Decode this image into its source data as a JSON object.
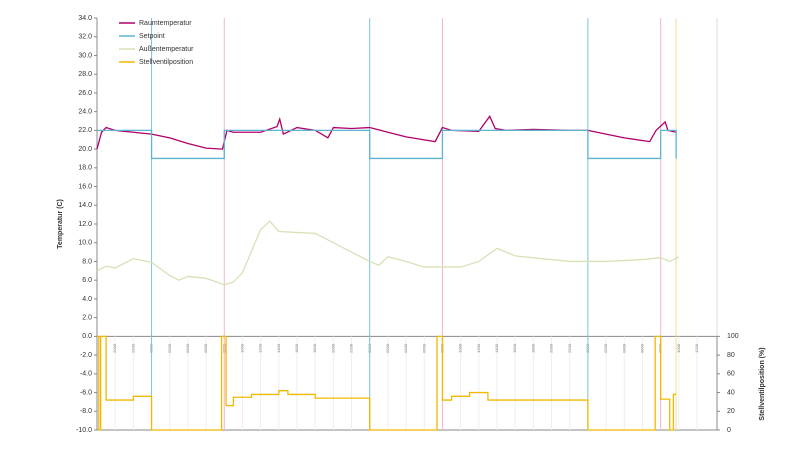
{
  "chart_data": {
    "type": "line",
    "ylabel": "Temperatur (C)",
    "y2label": "Stellventilposition (%)",
    "xlim": [
      18,
      86.2
    ],
    "ylim": [
      -10,
      34
    ],
    "y2lim": [
      0,
      100
    ],
    "yticks": [
      {
        "value": 34,
        "label": "34.0"
      },
      {
        "value": 32,
        "label": "32.0"
      },
      {
        "value": 30,
        "label": "30.0"
      },
      {
        "value": 28,
        "label": "28.0"
      },
      {
        "value": 26,
        "label": "26.0"
      },
      {
        "value": 24,
        "label": "24.0"
      },
      {
        "value": 22,
        "label": "22.0"
      },
      {
        "value": 20,
        "label": "20.0"
      },
      {
        "value": 18,
        "label": "18.0"
      },
      {
        "value": 16,
        "label": "16.0"
      },
      {
        "value": 14,
        "label": "14.0"
      },
      {
        "value": 12,
        "label": "12.0"
      },
      {
        "value": 10,
        "label": "10.0"
      },
      {
        "value": 8,
        "label": "8.0"
      },
      {
        "value": 6,
        "label": "6.0"
      },
      {
        "value": 4,
        "label": "4.0"
      },
      {
        "value": 2,
        "label": "2.0"
      },
      {
        "value": 0,
        "label": "0.0"
      },
      {
        "value": -2,
        "label": "-2.0"
      },
      {
        "value": -4,
        "label": "-4.0"
      },
      {
        "value": -6,
        "label": "-6.0"
      },
      {
        "value": -8,
        "label": "-8.0"
      },
      {
        "value": -10,
        "label": "-10.0"
      }
    ],
    "y2ticks": [
      0,
      20,
      40,
      60,
      80,
      100
    ],
    "xticks": [
      {
        "value": 20,
        "label": "2000"
      },
      {
        "value": 22,
        "label": "2200"
      },
      {
        "value": 24,
        "label": "0000"
      },
      {
        "value": 26,
        "label": "0200"
      },
      {
        "value": 28,
        "label": "0400"
      },
      {
        "value": 30,
        "label": "0600"
      },
      {
        "value": 32,
        "label": "0800"
      },
      {
        "value": 34,
        "label": "1000"
      },
      {
        "value": 36,
        "label": "1200"
      },
      {
        "value": 38,
        "label": "1400"
      },
      {
        "value": 40,
        "label": "1600"
      },
      {
        "value": 42,
        "label": "1800"
      },
      {
        "value": 44,
        "label": "2000"
      },
      {
        "value": 46,
        "label": "2200"
      },
      {
        "value": 48,
        "label": "0000"
      },
      {
        "value": 50,
        "label": "0200"
      },
      {
        "value": 52,
        "label": "0400"
      },
      {
        "value": 54,
        "label": "0600"
      },
      {
        "value": 56,
        "label": "0800"
      },
      {
        "value": 58,
        "label": "1000"
      },
      {
        "value": 60,
        "label": "1200"
      },
      {
        "value": 62,
        "label": "1400"
      },
      {
        "value": 64,
        "label": "1600"
      },
      {
        "value": 66,
        "label": "1800"
      },
      {
        "value": 68,
        "label": "2000"
      },
      {
        "value": 70,
        "label": "2200"
      },
      {
        "value": 72,
        "label": "0000"
      },
      {
        "value": 74,
        "label": "0200"
      },
      {
        "value": 76,
        "label": "0400"
      },
      {
        "value": 78,
        "label": "0600"
      },
      {
        "value": 80,
        "label": "0800"
      },
      {
        "value": 82,
        "label": "1000"
      },
      {
        "value": 84,
        "label": "1200"
      }
    ],
    "vlines": [
      {
        "x": 24,
        "color": "#7cc3dc"
      },
      {
        "x": 48,
        "color": "#7cc3dc"
      },
      {
        "x": 72,
        "color": "#7cc3dc"
      },
      {
        "x": 32,
        "color": "#f4b6c8"
      },
      {
        "x": 56,
        "color": "#f4b6c8"
      },
      {
        "x": 80,
        "color": "#f4b6c8"
      },
      {
        "x": 81.7,
        "color": "#f3dfa0"
      }
    ],
    "series": [
      {
        "name": "Raumtemperatur",
        "color": "#b0006a",
        "x": [
          18,
          18.5,
          19,
          20,
          22,
          24,
          26,
          28,
          30,
          31.8,
          32.3,
          33,
          36,
          37.8,
          38.1,
          38.5,
          40,
          42,
          43.4,
          44,
          46,
          48,
          50,
          52,
          55.2,
          56,
          57,
          60,
          61.2,
          61.8,
          63,
          66,
          70,
          72,
          74,
          76,
          78.8,
          79.5,
          80.5,
          80.8,
          81.7
        ],
        "values": [
          20.0,
          21.8,
          22.3,
          22.0,
          21.8,
          21.6,
          21.2,
          20.6,
          20.1,
          20.0,
          22.0,
          21.8,
          21.8,
          22.4,
          23.2,
          21.6,
          22.3,
          22.0,
          21.2,
          22.3,
          22.2,
          22.3,
          21.8,
          21.3,
          20.8,
          22.3,
          22.0,
          21.9,
          23.5,
          22.2,
          22.0,
          22.1,
          22.0,
          22.0,
          21.6,
          21.2,
          20.8,
          22.0,
          22.9,
          22.0,
          21.8
        ]
      },
      {
        "name": "Setpoint",
        "color": "#5db4d2",
        "x": [
          18,
          24,
          24,
          32,
          32,
          48,
          48,
          56,
          56,
          72,
          72,
          80,
          80,
          81.7,
          81.7
        ],
        "values": [
          22,
          22,
          19,
          19,
          22,
          22,
          19,
          19,
          22,
          22,
          19,
          19,
          22,
          22,
          19
        ]
      },
      {
        "name": "Außentemperatur",
        "color": "#d6e2b6",
        "x": [
          18,
          19,
          20,
          22,
          24,
          26,
          27,
          28,
          30,
          32,
          33,
          34,
          36,
          37,
          38,
          42,
          44,
          46,
          48,
          49,
          50,
          52,
          54,
          58,
          60,
          62,
          64,
          66,
          70,
          74,
          78,
          80,
          81,
          82
        ],
        "values": [
          7.0,
          7.5,
          7.3,
          8.3,
          7.9,
          6.5,
          6.0,
          6.4,
          6.2,
          5.5,
          5.8,
          6.8,
          11.4,
          12.3,
          11.2,
          11.0,
          10.0,
          9.0,
          8.0,
          7.6,
          8.5,
          8.0,
          7.4,
          7.4,
          8.0,
          9.4,
          8.6,
          8.4,
          8.0,
          8.0,
          8.2,
          8.4,
          8.0,
          8.5
        ]
      },
      {
        "name": "Stellventilposition",
        "color": "#f2b800",
        "axis": "y2",
        "x": [
          18,
          18.2,
          18.2,
          18.4,
          18.4,
          19,
          19,
          22,
          22,
          24,
          24,
          31.7,
          31.7,
          32.2,
          32.2,
          33,
          33,
          35,
          35,
          38,
          38,
          39,
          39,
          42,
          42,
          48,
          48,
          55.4,
          55.4,
          56,
          56,
          57,
          57,
          59,
          59,
          61,
          61,
          63,
          63,
          72,
          72,
          79.4,
          79.4,
          80,
          80,
          81,
          81,
          81.4,
          81.4,
          81.7
        ],
        "values": [
          100,
          100,
          0,
          0,
          100,
          100,
          32,
          32,
          36,
          36,
          0,
          0,
          100,
          100,
          26,
          26,
          35,
          35,
          38,
          38,
          42,
          42,
          38,
          38,
          34,
          34,
          0,
          0,
          100,
          100,
          32,
          32,
          36,
          36,
          40,
          40,
          32,
          32,
          32,
          32,
          0,
          0,
          100,
          100,
          33,
          33,
          0,
          0,
          38,
          38
        ]
      }
    ],
    "legend": "upper left"
  }
}
